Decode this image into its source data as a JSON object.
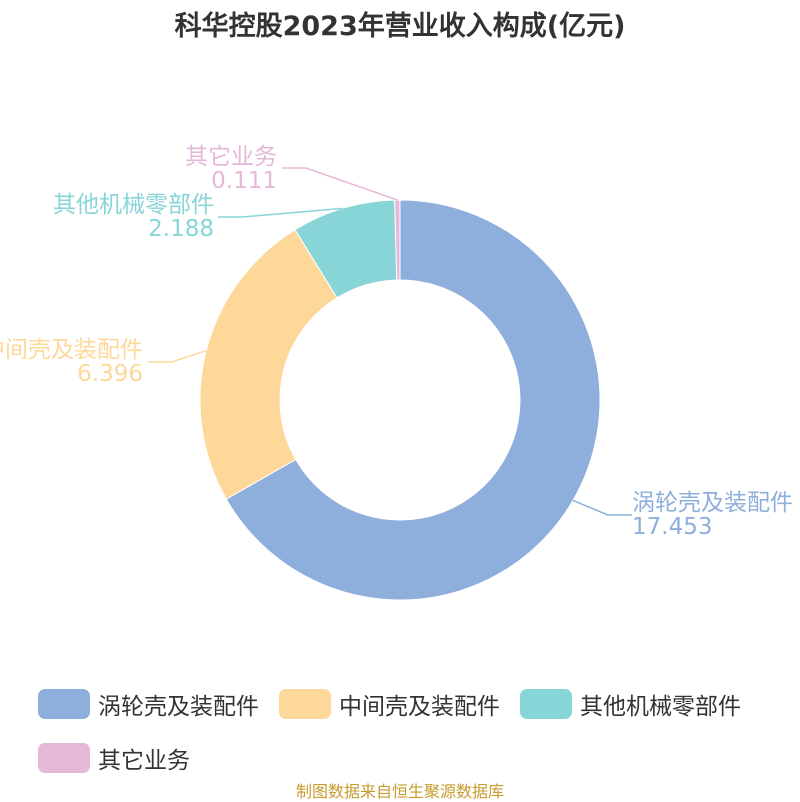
{
  "source_note": "制图数据来自恒生聚源数据库",
  "chart_data": {
    "type": "pie",
    "donut": true,
    "title": "科华控股2023年营业收入构成(亿元)",
    "legend_position": "bottom",
    "slices": [
      {
        "label": "涡轮壳及装配件",
        "value": 17.453,
        "value_text": "17.453",
        "color": "#8eaedb"
      },
      {
        "label": "中间壳及装配件",
        "value": 6.396,
        "value_text": "6.396",
        "color": "#fdd899"
      },
      {
        "label": "其他机械零部件",
        "value": 2.188,
        "value_text": "2.188",
        "color": "#88d5d8"
      },
      {
        "label": "其它业务",
        "value": 0.111,
        "value_text": "0.111",
        "color": "#e6b8d8"
      }
    ]
  }
}
